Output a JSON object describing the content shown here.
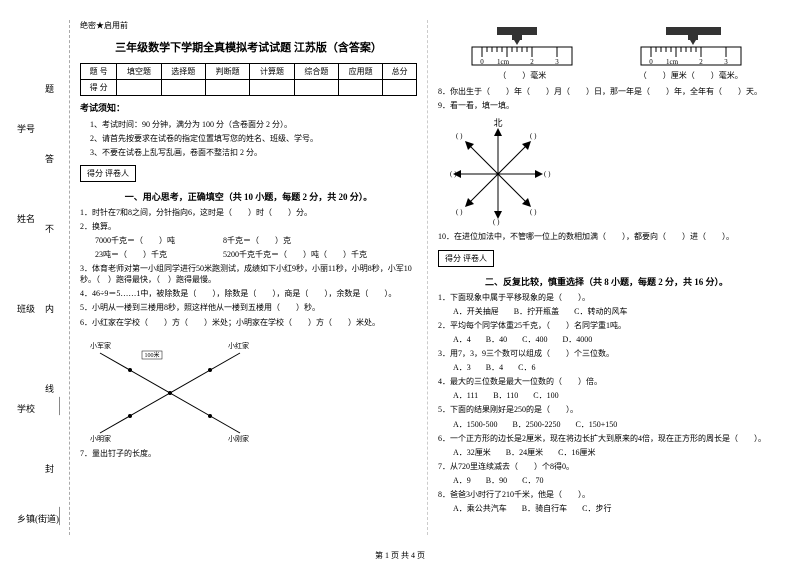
{
  "margin": {
    "labels": [
      "乡镇(街道)",
      "学校",
      "班级",
      "姓名",
      "学号"
    ],
    "dashes": [
      "封",
      "线",
      "内",
      "不",
      "答",
      "题"
    ]
  },
  "secret": "绝密★启用前",
  "title": "三年级数学下学期全真模拟考试试题 江苏版（含答案）",
  "scoreTable": {
    "row1": [
      "题 号",
      "填空题",
      "选择题",
      "判断题",
      "计算题",
      "综合题",
      "应用题",
      "总分"
    ],
    "row2": [
      "得 分",
      "",
      "",
      "",
      "",
      "",
      "",
      ""
    ]
  },
  "noticeTitle": "考试须知：",
  "notices": [
    "1、考试时间：90 分钟，满分为 100 分（含卷面分 2 分）。",
    "2、请首先按要求在试卷的指定位置填写您的姓名、班级、学号。",
    "3、不要在试卷上乱写乱画，卷面不整洁扣 2 分。"
  ],
  "scoreBox": "得分  评卷人",
  "sectionA": "一、用心思考，正确填空（共 10 小题，每题 2 分，共 20 分）。",
  "qaLeft": [
    "1．时针在7和8之间，分针指向6，这时是（　　）时（　　）分。",
    "2．换算。",
    "3．体育老师对第一小组同学进行50米跑测试，成绩如下小红9秒，小丽11秒，小明8秒，小军10秒。（　）跑得最快，（　）跑得最慢。",
    "4．46÷9＝5……1中，被除数是（　　），除数是（　　），商是（　　），余数是（　　）。",
    "5．小明从一楼到三楼用8秒，照这样他从一楼到五楼用（　　）秒。",
    "6．小红家在学校（　　）方（　　）米处；小明家在学校（　　）方（　　）米处。",
    "7．量出钉子的长度。"
  ],
  "q2sub": [
    "7000千克＝（　　）吨　　　　　　8千克＝（　　）克",
    "23吨＝（　　）千克　　　　　　　5200千克千克＝（　　）吨（　　）千克"
  ],
  "rulerLabel1": "（　　）毫米",
  "rulerLabel2": "（　　）厘米（　　）毫米。",
  "qaRight": [
    "8．你出生于（　　）年（　　）月（　　）日，那一年是（　　）年，全年有（　　）天。",
    "9．看一看，填一填。",
    "10．在进位加法中，不管哪一位上的数相加满（　　），都要向（　　）进（　　）。"
  ],
  "sectionB": "二、反复比较，慎重选择（共 8 小题，每题 2 分，共 16 分）。",
  "qbList": [
    {
      "q": "1．下面现象中属于平移现象的是（　　）。",
      "opts": [
        "A．开关抽屉",
        "B．拧开瓶盖",
        "C．转动的风车"
      ]
    },
    {
      "q": "2．平均每个同学体重25千克，（　　）名同学重1吨。",
      "opts": [
        "A．4",
        "B．40",
        "C．400",
        "D．4000"
      ]
    },
    {
      "q": "3．用7，3，9三个数可以组成（　　）个三位数。",
      "opts": [
        "A．3",
        "B．4",
        "C．6"
      ]
    },
    {
      "q": "4．最大的三位数是最大一位数的（　　）倍。",
      "opts": [
        "A．111",
        "B．110",
        "C．100"
      ]
    },
    {
      "q": "5．下面的结果刚好是250的是（　　）。",
      "opts": [
        "A．1500-500",
        "B．2500-2250",
        "C．150+150"
      ]
    },
    {
      "q": "6．一个正方形的边长是2厘米，现在将边长扩大到原来的4倍，现在正方形的周长是（　　）。",
      "opts": [
        "A．32厘米",
        "B．24厘米",
        "C．16厘米"
      ]
    },
    {
      "q": "7．从720里连续减去（　　）个8得0。",
      "opts": [
        "A．9",
        "B．90",
        "C．70"
      ]
    },
    {
      "q": "8．爸爸3小时行了210千米，他是（　　）。",
      "opts": [
        "A．乘公共汽车",
        "B．骑自行车",
        "C．步行"
      ]
    }
  ],
  "compass": {
    "n": "北"
  },
  "crossLabels": {
    "xh": "小红家",
    "xm": "小明家",
    "xj": "小军家",
    "xg": "小刚家",
    "d": "100米"
  },
  "footer": "第 1 页 共 4 页",
  "colors": {
    "text": "#000000",
    "line": "#000000",
    "dash": "#aaaaaa"
  }
}
